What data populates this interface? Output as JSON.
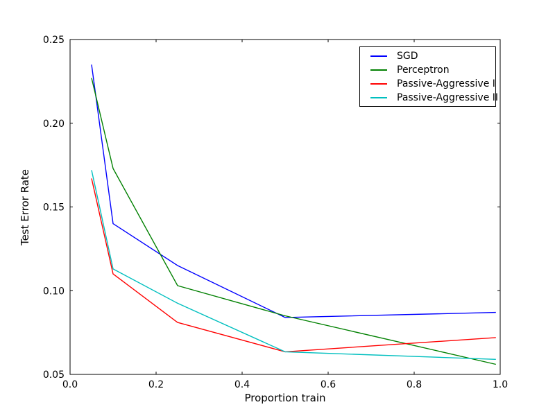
{
  "figure": {
    "background_color": "#ffffff",
    "axis_color": "#000000",
    "text_color": "#000000"
  },
  "chart_data": {
    "type": "line",
    "title": "",
    "xlabel": "Proportion train",
    "ylabel": "Test Error Rate",
    "xlim": [
      0.0,
      1.0
    ],
    "ylim": [
      0.05,
      0.25
    ],
    "grid": false,
    "legend_position": "upper right",
    "x_ticks": [
      {
        "value": 0.0,
        "label": "0.0"
      },
      {
        "value": 0.2,
        "label": "0.2"
      },
      {
        "value": 0.4,
        "label": "0.4"
      },
      {
        "value": 0.6,
        "label": "0.6"
      },
      {
        "value": 0.8,
        "label": "0.8"
      },
      {
        "value": 1.0,
        "label": "1.0"
      }
    ],
    "y_ticks": [
      {
        "value": 0.05,
        "label": "0.05"
      },
      {
        "value": 0.1,
        "label": "0.10"
      },
      {
        "value": 0.15,
        "label": "0.15"
      },
      {
        "value": 0.2,
        "label": "0.20"
      },
      {
        "value": 0.25,
        "label": "0.25"
      }
    ],
    "x": [
      0.05,
      0.1,
      0.25,
      0.5,
      0.99
    ],
    "series": [
      {
        "name": "SGD",
        "color": "#0000ff",
        "values": [
          0.235,
          0.14,
          0.115,
          0.084,
          0.087
        ]
      },
      {
        "name": "Perceptron",
        "color": "#008000",
        "values": [
          0.227,
          0.173,
          0.103,
          0.085,
          0.056
        ]
      },
      {
        "name": "Passive-Aggressive I",
        "color": "#ff0000",
        "values": [
          0.167,
          0.11,
          0.081,
          0.0635,
          0.072
        ]
      },
      {
        "name": "Passive-Aggressive II",
        "color": "#00bfbf",
        "values": [
          0.172,
          0.113,
          0.0925,
          0.0635,
          0.059
        ]
      }
    ]
  }
}
